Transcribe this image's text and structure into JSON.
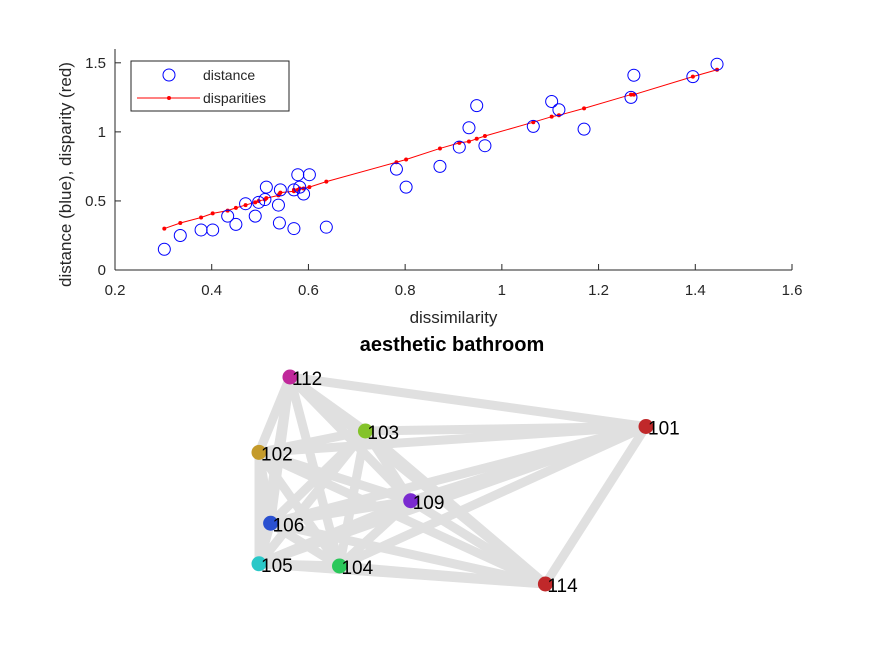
{
  "chart_data": [
    {
      "type": "scatter",
      "title": "",
      "xlabel": "dissimilarity",
      "ylabel": "distance (blue), disparity (red)",
      "xlim": [
        0.2,
        1.6
      ],
      "ylim": [
        0,
        1.6
      ],
      "xticks": [
        "0.2",
        "0.4",
        "0.6",
        "0.8",
        "1",
        "1.2",
        "1.4",
        "1.6"
      ],
      "yticks": [
        "0",
        "0.5",
        "1",
        "1.5"
      ],
      "grid": false,
      "legend_position": "top-left",
      "colors": {
        "distance": "#0000ff",
        "disparities": "#ff0000",
        "axes": "#262626"
      },
      "series": [
        {
          "name": "distance",
          "marker": "open-circle",
          "points": [
            [
              0.302,
              0.15
            ],
            [
              0.335,
              0.25
            ],
            [
              0.378,
              0.29
            ],
            [
              0.402,
              0.29
            ],
            [
              0.433,
              0.39
            ],
            [
              0.45,
              0.33
            ],
            [
              0.47,
              0.48
            ],
            [
              0.49,
              0.39
            ],
            [
              0.497,
              0.49
            ],
            [
              0.51,
              0.51
            ],
            [
              0.513,
              0.6
            ],
            [
              0.538,
              0.47
            ],
            [
              0.54,
              0.34
            ],
            [
              0.542,
              0.58
            ],
            [
              0.57,
              0.58
            ],
            [
              0.57,
              0.3
            ],
            [
              0.578,
              0.69
            ],
            [
              0.582,
              0.6
            ],
            [
              0.59,
              0.55
            ],
            [
              0.602,
              0.69
            ],
            [
              0.637,
              0.31
            ],
            [
              0.782,
              0.73
            ],
            [
              0.802,
              0.6
            ],
            [
              0.872,
              0.75
            ],
            [
              0.912,
              0.89
            ],
            [
              0.932,
              1.03
            ],
            [
              0.948,
              1.19
            ],
            [
              0.965,
              0.9
            ],
            [
              1.065,
              1.04
            ],
            [
              1.103,
              1.22
            ],
            [
              1.118,
              1.16
            ],
            [
              1.17,
              1.02
            ],
            [
              1.267,
              1.25
            ],
            [
              1.273,
              1.41
            ],
            [
              1.395,
              1.4
            ],
            [
              1.445,
              1.49
            ]
          ]
        },
        {
          "name": "disparities",
          "marker": "dot-line",
          "points": [
            [
              0.302,
              0.3
            ],
            [
              0.335,
              0.34
            ],
            [
              0.378,
              0.38
            ],
            [
              0.402,
              0.41
            ],
            [
              0.433,
              0.43
            ],
            [
              0.45,
              0.45
            ],
            [
              0.47,
              0.47
            ],
            [
              0.49,
              0.49
            ],
            [
              0.497,
              0.5
            ],
            [
              0.51,
              0.51
            ],
            [
              0.513,
              0.52
            ],
            [
              0.538,
              0.54
            ],
            [
              0.54,
              0.55
            ],
            [
              0.542,
              0.56
            ],
            [
              0.57,
              0.57
            ],
            [
              0.57,
              0.58
            ],
            [
              0.578,
              0.58
            ],
            [
              0.582,
              0.59
            ],
            [
              0.59,
              0.59
            ],
            [
              0.602,
              0.6
            ],
            [
              0.637,
              0.64
            ],
            [
              0.782,
              0.78
            ],
            [
              0.802,
              0.8
            ],
            [
              0.872,
              0.88
            ],
            [
              0.912,
              0.92
            ],
            [
              0.932,
              0.93
            ],
            [
              0.948,
              0.95
            ],
            [
              0.965,
              0.97
            ],
            [
              1.065,
              1.07
            ],
            [
              1.103,
              1.11
            ],
            [
              1.118,
              1.12
            ],
            [
              1.17,
              1.17
            ],
            [
              1.267,
              1.27
            ],
            [
              1.273,
              1.27
            ],
            [
              1.395,
              1.4
            ],
            [
              1.445,
              1.45
            ]
          ]
        }
      ]
    },
    {
      "type": "network",
      "title": "aesthetic bathroom",
      "edge_color": "#e0e0e0",
      "nodes": [
        {
          "id": "112",
          "color": "#c0289b",
          "x": 0.08,
          "y": 0.92
        },
        {
          "id": "101",
          "color": "#c0282a",
          "x": 1.0,
          "y": 0.7
        },
        {
          "id": "103",
          "color": "#84c32a",
          "x": 0.275,
          "y": 0.68
        },
        {
          "id": "102",
          "color": "#c49a2a",
          "x": 0.0,
          "y": 0.585
        },
        {
          "id": "109",
          "color": "#7a2ad0",
          "x": 0.392,
          "y": 0.37
        },
        {
          "id": "106",
          "color": "#2a50d0",
          "x": 0.03,
          "y": 0.27
        },
        {
          "id": "105",
          "color": "#2ac8c8",
          "x": 0.0,
          "y": 0.09
        },
        {
          "id": "104",
          "color": "#2ac85a",
          "x": 0.208,
          "y": 0.08
        },
        {
          "id": "114",
          "color": "#c0282a",
          "x": 0.74,
          "y": 0.0
        }
      ],
      "edges": [
        [
          "112",
          "101"
        ],
        [
          "112",
          "103"
        ],
        [
          "112",
          "102"
        ],
        [
          "112",
          "109"
        ],
        [
          "112",
          "106"
        ],
        [
          "112",
          "105"
        ],
        [
          "112",
          "104"
        ],
        [
          "112",
          "114"
        ],
        [
          "101",
          "103"
        ],
        [
          "101",
          "102"
        ],
        [
          "101",
          "109"
        ],
        [
          "101",
          "106"
        ],
        [
          "101",
          "105"
        ],
        [
          "101",
          "104"
        ],
        [
          "101",
          "114"
        ],
        [
          "103",
          "102"
        ],
        [
          "103",
          "109"
        ],
        [
          "103",
          "106"
        ],
        [
          "103",
          "105"
        ],
        [
          "103",
          "104"
        ],
        [
          "103",
          "114"
        ],
        [
          "102",
          "109"
        ],
        [
          "102",
          "106"
        ],
        [
          "102",
          "105"
        ],
        [
          "102",
          "104"
        ],
        [
          "102",
          "114"
        ],
        [
          "109",
          "106"
        ],
        [
          "109",
          "105"
        ],
        [
          "109",
          "104"
        ],
        [
          "109",
          "114"
        ],
        [
          "106",
          "105"
        ],
        [
          "106",
          "104"
        ],
        [
          "106",
          "114"
        ],
        [
          "105",
          "104"
        ],
        [
          "105",
          "114"
        ],
        [
          "104",
          "114"
        ]
      ]
    }
  ]
}
